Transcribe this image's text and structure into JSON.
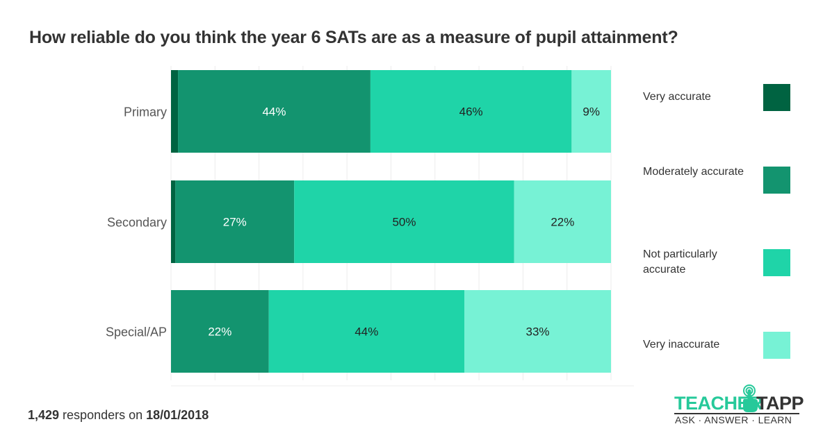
{
  "chart_data": {
    "type": "bar",
    "orientation": "horizontal",
    "stacked": true,
    "title": "How reliable do you think the year 6 SATs are as a measure of pupil attainment?",
    "xlabel": "",
    "ylabel": "",
    "xlim": [
      0,
      100
    ],
    "grid": true,
    "legend_position": "right",
    "categories": [
      "Primary",
      "Secondary",
      "Special/AP"
    ],
    "series": [
      {
        "name": "Very accurate",
        "color": "#006341",
        "values": [
          1.6,
          1.0,
          0
        ],
        "labels": [
          "",
          "",
          ""
        ]
      },
      {
        "name": "Moderately accurate",
        "color": "#13946f",
        "values": [
          44,
          27,
          22
        ],
        "labels": [
          "44%",
          "27%",
          "22%"
        ]
      },
      {
        "name": "Not particularly accurate",
        "color": "#1fd4a8",
        "values": [
          46,
          50,
          44
        ],
        "labels": [
          "46%",
          "50%",
          "44%"
        ]
      },
      {
        "name": "Very inaccurate",
        "color": "#77f2d5",
        "values": [
          9,
          22,
          33
        ],
        "labels": [
          "9%",
          "22%",
          "33%"
        ]
      }
    ]
  },
  "legend": [
    {
      "label": "Very accurate",
      "color": "#006341"
    },
    {
      "label": "Moderately accurate",
      "color": "#13946f"
    },
    {
      "label": "Not particularly accurate",
      "color": "#1fd4a8"
    },
    {
      "label": "Very inaccurate",
      "color": "#77f2d5"
    }
  ],
  "footer": {
    "count": "1,429",
    "middle": " responders on ",
    "date": "18/01/2018"
  },
  "logo": {
    "word1": "TEACHER",
    "word2": "TAPP",
    "tagline": "ASK · ANSWER · LEARN",
    "accent": "#26c99a"
  }
}
